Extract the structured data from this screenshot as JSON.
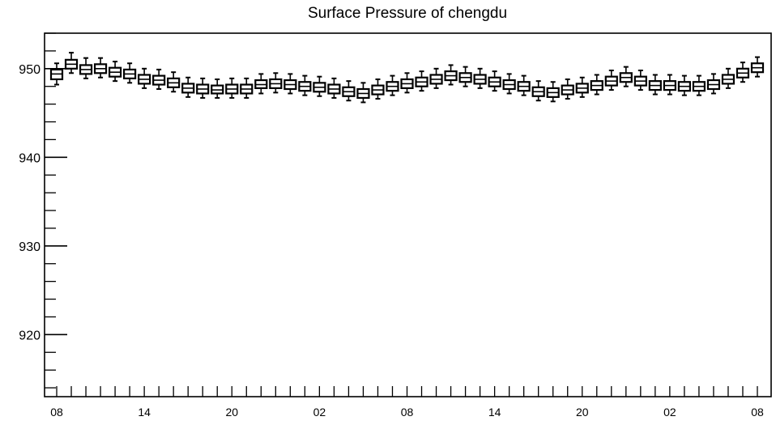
{
  "chart_data": {
    "type": "boxplot",
    "title": "Surface Pressure of chengdu",
    "xlabel": "",
    "ylabel": "",
    "ylim": [
      913,
      954
    ],
    "grid": false,
    "y_ticks": [
      920,
      930,
      940,
      950
    ],
    "y_tick_labels": [
      "920",
      "930",
      "940",
      "950"
    ],
    "x_tick_labels": [
      "08",
      "14",
      "20",
      "02",
      "08",
      "14",
      "20",
      "02",
      "08"
    ],
    "x_tick_label_index": [
      0,
      6,
      12,
      18,
      24,
      30,
      36,
      42,
      48
    ],
    "series": [
      {
        "median": [
          949.4,
          950.5,
          949.9,
          950.0,
          949.6,
          949.4,
          948.8,
          948.7,
          948.4,
          947.8,
          947.7,
          947.6,
          947.7,
          947.7,
          948.2,
          948.3,
          948.2,
          948.0,
          947.9,
          947.7,
          947.4,
          947.2,
          947.6,
          948.0,
          948.3,
          948.5,
          948.8,
          949.2,
          949.0,
          948.8,
          948.5,
          948.2,
          948.0,
          947.4,
          947.3,
          947.6,
          947.8,
          948.1,
          948.6,
          949.0,
          948.6,
          948.1,
          948.1,
          948.0,
          948.0,
          948.2,
          948.8,
          949.5,
          950.1
        ],
        "q1": [
          948.8,
          950.0,
          949.4,
          949.5,
          949.1,
          948.9,
          948.3,
          948.2,
          947.9,
          947.3,
          947.2,
          947.2,
          947.2,
          947.2,
          947.8,
          947.8,
          947.7,
          947.5,
          947.4,
          947.2,
          946.9,
          946.7,
          947.1,
          947.5,
          947.8,
          948.0,
          948.3,
          948.7,
          948.5,
          948.3,
          948.0,
          947.7,
          947.5,
          946.9,
          946.8,
          947.1,
          947.3,
          947.6,
          948.1,
          948.5,
          948.1,
          947.6,
          947.6,
          947.5,
          947.5,
          947.7,
          948.3,
          949.0,
          949.6
        ],
        "q3": [
          949.9,
          951.0,
          950.4,
          950.5,
          950.1,
          949.9,
          949.3,
          949.2,
          948.9,
          948.3,
          948.2,
          948.1,
          948.2,
          948.2,
          948.7,
          948.8,
          948.7,
          948.5,
          948.4,
          948.2,
          947.9,
          947.7,
          948.1,
          948.5,
          948.8,
          949.0,
          949.3,
          949.7,
          949.5,
          949.3,
          949.0,
          948.7,
          948.5,
          947.9,
          947.8,
          948.1,
          948.3,
          948.6,
          949.1,
          949.5,
          949.1,
          948.6,
          948.6,
          948.5,
          948.5,
          948.7,
          949.3,
          950.0,
          950.6
        ],
        "whisker_low": [
          948.2,
          949.5,
          948.9,
          949.0,
          948.6,
          948.4,
          947.8,
          947.7,
          947.4,
          946.8,
          946.7,
          946.7,
          946.7,
          946.7,
          947.2,
          947.3,
          947.2,
          947.0,
          946.9,
          946.7,
          946.4,
          946.2,
          946.6,
          947.0,
          947.3,
          947.5,
          947.8,
          948.2,
          948.0,
          947.8,
          947.5,
          947.2,
          947.0,
          946.4,
          946.3,
          946.6,
          946.8,
          947.1,
          947.6,
          948.0,
          947.6,
          947.1,
          947.1,
          947.0,
          947.0,
          947.2,
          947.8,
          948.5,
          949.1
        ],
        "whisker_high": [
          950.6,
          951.8,
          951.2,
          951.2,
          950.8,
          950.6,
          950.0,
          949.9,
          949.6,
          949.0,
          948.9,
          948.8,
          948.9,
          948.9,
          949.4,
          949.5,
          949.4,
          949.2,
          949.1,
          948.9,
          948.6,
          948.4,
          948.8,
          949.2,
          949.5,
          949.7,
          950.0,
          950.4,
          950.2,
          950.0,
          949.7,
          949.4,
          949.2,
          948.6,
          948.5,
          948.8,
          949.0,
          949.3,
          949.8,
          950.2,
          949.8,
          949.3,
          949.3,
          949.2,
          949.2,
          949.4,
          950.0,
          950.7,
          951.3
        ]
      }
    ]
  }
}
